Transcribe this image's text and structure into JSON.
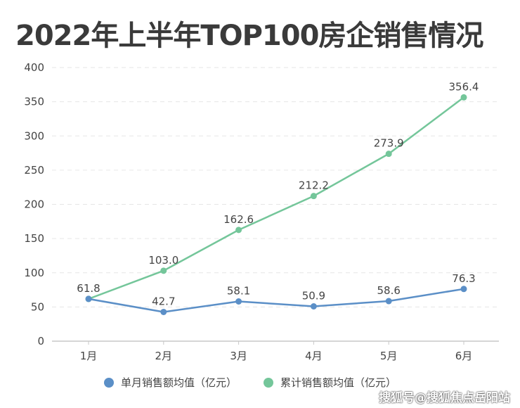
{
  "chart_data": {
    "type": "line",
    "title": "2022年上半年TOP100房企销售情况",
    "categories": [
      "1月",
      "2月",
      "3月",
      "4月",
      "5月",
      "6月"
    ],
    "series": [
      {
        "name": "单月销售额均值（亿元）",
        "color": "#5b8fc7",
        "values": [
          61.8,
          42.7,
          58.1,
          50.9,
          58.6,
          76.3
        ],
        "labels": [
          "61.8",
          "42.7",
          "58.1",
          "50.9",
          "58.6",
          "76.3"
        ]
      },
      {
        "name": "累计销售额均值（亿元）",
        "color": "#74c69a",
        "values": [
          61.8,
          103.0,
          162.6,
          212.2,
          273.9,
          356.4
        ],
        "labels": [
          "",
          "103.0",
          "162.6",
          "212.2",
          "273.9",
          "356.4"
        ]
      }
    ],
    "yticks": [
      "0",
      "50",
      "100",
      "150",
      "200",
      "250",
      "300",
      "350",
      "400"
    ],
    "ylim": [
      0,
      400
    ],
    "xlabel": "",
    "ylabel": "",
    "grid": true,
    "legend": "bottom"
  },
  "watermark": "搜狐号@搜狐焦点岳阳站"
}
